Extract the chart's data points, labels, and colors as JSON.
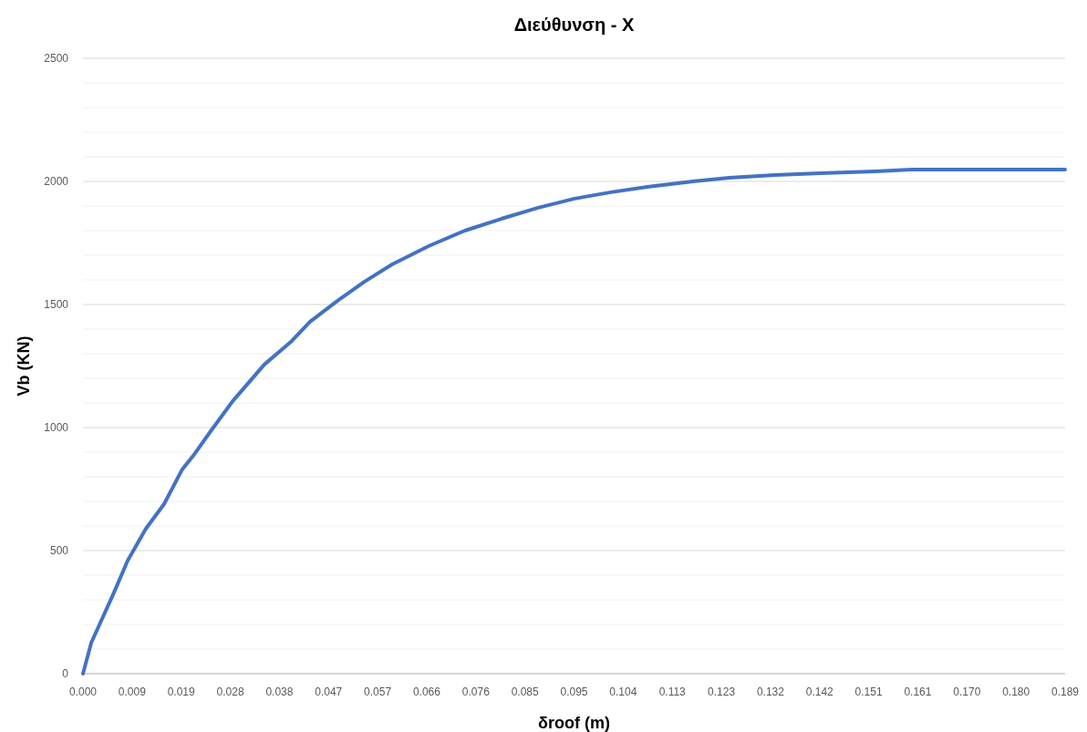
{
  "chart_data": {
    "type": "line",
    "title": "Διεύθυνση - X",
    "xlabel": "δroof (m)",
    "ylabel": "Vb (KN)",
    "x": [
      0,
      0.0016,
      0.0058,
      0.0086,
      0.0121,
      0.0156,
      0.0191,
      0.0212,
      0.0247,
      0.0288,
      0.0349,
      0.0402,
      0.0437,
      0.049,
      0.0542,
      0.0595,
      0.0665,
      0.0735,
      0.0805,
      0.0876,
      0.0946,
      0.1016,
      0.1086,
      0.1174,
      0.1244,
      0.1332,
      0.142,
      0.1525,
      0.1595,
      0.189
    ],
    "series": [
      {
        "color": "#4472c4",
        "values": [
          0,
          126,
          322,
          459,
          589,
          689,
          830,
          885,
          989,
          1107,
          1256,
          1352,
          1430,
          1515,
          1593,
          1663,
          1737,
          1800,
          1848,
          1893,
          1930,
          1956,
          1978,
          2000,
          2015,
          2026,
          2033,
          2041,
          2048,
          2048
        ]
      }
    ],
    "xlim": [
      0,
      0.189
    ],
    "xticks": [
      {
        "value": 0,
        "label": "0.000"
      },
      {
        "value": 0.00945,
        "label": "0.009"
      },
      {
        "value": 0.0189,
        "label": "0.019"
      },
      {
        "value": 0.02835,
        "label": "0.028"
      },
      {
        "value": 0.0378,
        "label": "0.038"
      },
      {
        "value": 0.04725,
        "label": "0.047"
      },
      {
        "value": 0.0567,
        "label": "0.057"
      },
      {
        "value": 0.06615,
        "label": "0.066"
      },
      {
        "value": 0.0756,
        "label": "0.076"
      },
      {
        "value": 0.08505,
        "label": "0.085"
      },
      {
        "value": 0.0945,
        "label": "0.095"
      },
      {
        "value": 0.10395,
        "label": "0.104"
      },
      {
        "value": 0.1134,
        "label": "0.113"
      },
      {
        "value": 0.12285,
        "label": "0.123"
      },
      {
        "value": 0.1323,
        "label": "0.132"
      },
      {
        "value": 0.14175,
        "label": "0.142"
      },
      {
        "value": 0.1512,
        "label": "0.151"
      },
      {
        "value": 0.16065,
        "label": "0.161"
      },
      {
        "value": 0.1701,
        "label": "0.170"
      },
      {
        "value": 0.17955,
        "label": "0.180"
      },
      {
        "value": 0.189,
        "label": "0.189"
      }
    ],
    "ylim": [
      0,
      2500
    ],
    "yticks": [
      0,
      {
        "value": 100,
        "label": null
      },
      {
        "value": 200,
        "label": null
      },
      {
        "value": 300,
        "label": null
      },
      {
        "value": 400,
        "label": null
      },
      500,
      {
        "value": 600,
        "label": null
      },
      {
        "value": 700,
        "label": null
      },
      {
        "value": 800,
        "label": null
      },
      {
        "value": 900,
        "label": null
      },
      1000,
      {
        "value": 1100,
        "label": null
      },
      {
        "value": 1200,
        "label": null
      },
      {
        "value": 1300,
        "label": null
      },
      {
        "value": 1400,
        "label": null
      },
      1500,
      {
        "value": 1600,
        "label": null
      },
      {
        "value": 1700,
        "label": null
      },
      {
        "value": 1800,
        "label": null
      },
      {
        "value": 1900,
        "label": null
      },
      2000,
      {
        "value": 2100,
        "label": null
      },
      {
        "value": 2200,
        "label": null
      },
      {
        "value": 2300,
        "label": null
      },
      {
        "value": 2400,
        "label": null
      },
      2500
    ],
    "grid": "y"
  }
}
